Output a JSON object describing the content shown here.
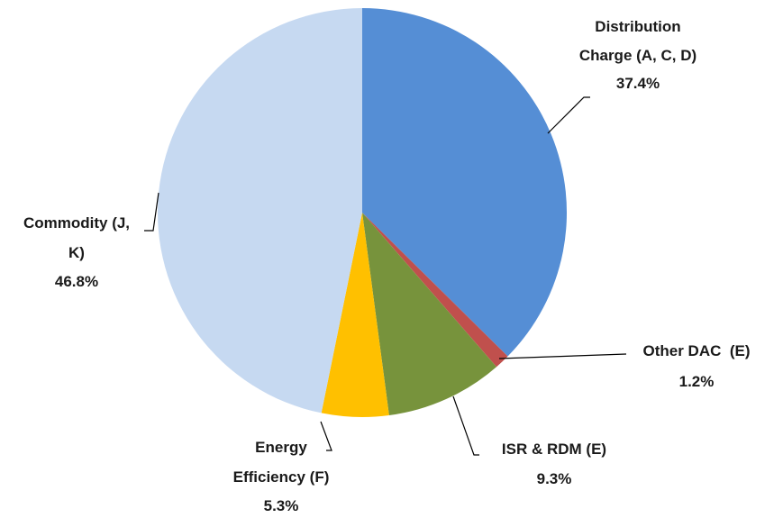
{
  "chart_data": {
    "type": "pie",
    "categories": [
      "Distribution Charge (A, C, D)",
      "Other DAC  (E)",
      "ISR & RDM (E)",
      "Energy Efficiency (F)",
      "Commodity (J, K)"
    ],
    "values": [
      37.4,
      1.2,
      9.3,
      5.3,
      46.8
    ],
    "value_labels": [
      "37.4%",
      "1.2%",
      "9.3%",
      "5.3%",
      "46.8%"
    ],
    "colors": [
      "#558ed5",
      "#c0504d",
      "#77933c",
      "#ffc000",
      "#c6d9f1"
    ]
  }
}
